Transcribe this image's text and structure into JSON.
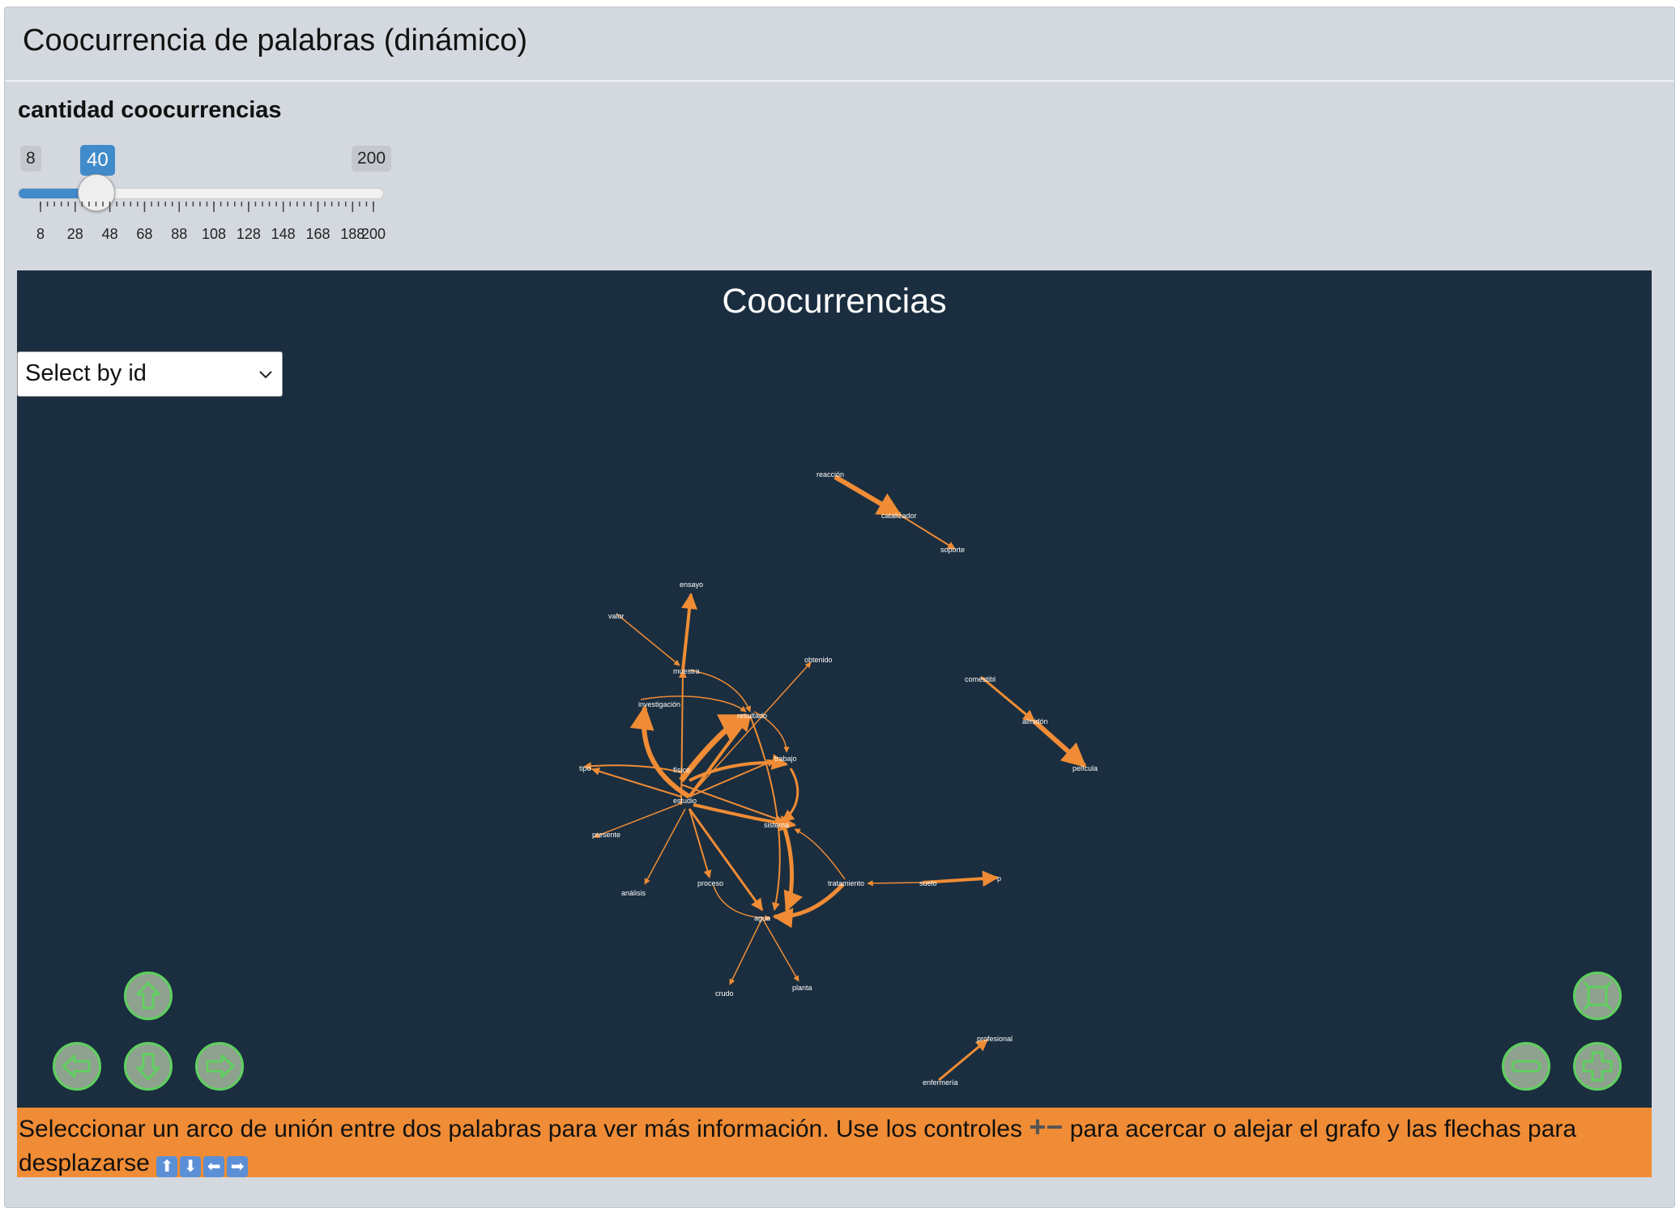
{
  "panel": {
    "title": "Coocurrencia de palabras (dinámico)"
  },
  "slider": {
    "label": "cantidad coocurrencias",
    "min": "8",
    "max": "200",
    "value": "40",
    "value_fraction": 0.1667,
    "tick_labels": [
      "8",
      "28",
      "48",
      "68",
      "88",
      "108",
      "128",
      "148",
      "168",
      "188",
      "200"
    ]
  },
  "graph": {
    "title": "Coocurrencias",
    "select_placeholder": "Select by id",
    "edge_color": "#f08c35",
    "background": "#1a2e3f",
    "nodes": [
      {
        "id": "reacción"
      },
      {
        "id": "catalizador"
      },
      {
        "id": "soporte"
      },
      {
        "id": "ensayo"
      },
      {
        "id": "valor"
      },
      {
        "id": "muestra"
      },
      {
        "id": "obtenido"
      },
      {
        "id": "comestibl"
      },
      {
        "id": "almidón"
      },
      {
        "id": "película"
      },
      {
        "id": "investigación"
      },
      {
        "id": "resultado"
      },
      {
        "id": "trabajo"
      },
      {
        "id": "tipo"
      },
      {
        "id": "físico"
      },
      {
        "id": "estudio"
      },
      {
        "id": "presente"
      },
      {
        "id": "sistema"
      },
      {
        "id": "análisis"
      },
      {
        "id": "proceso"
      },
      {
        "id": "tratamiento"
      },
      {
        "id": "suelo"
      },
      {
        "id": "p"
      },
      {
        "id": "agua"
      },
      {
        "id": "crudo"
      },
      {
        "id": "planta"
      },
      {
        "id": "profesional"
      },
      {
        "id": "enfermería"
      }
    ]
  },
  "controls": {
    "up": "arrow-up-icon",
    "down": "arrow-down-icon",
    "left": "arrow-left-icon",
    "right": "arrow-right-icon",
    "zoom_in": "plus-icon",
    "zoom_out": "minus-icon",
    "fit": "fit-screen-icon"
  },
  "info": {
    "text_1": "Seleccionar un arco de unión entre dos palabras para ver más información. Use los controles ",
    "text_2": " para acercar o alejar el grafo y las flechas para desplazarse "
  }
}
